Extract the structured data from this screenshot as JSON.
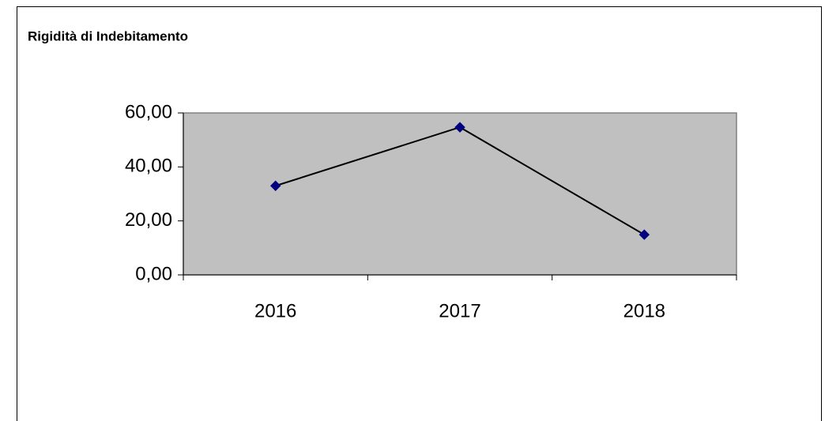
{
  "chart_data": {
    "type": "line",
    "title": "Rigidità di Indebitamento",
    "categories": [
      "2016",
      "2017",
      "2018"
    ],
    "series": [
      {
        "name": "Rigidità di Indebitamento",
        "color": "#000080",
        "values": [
          33,
          54.7,
          14.9
        ]
      }
    ],
    "ylim": [
      0,
      60
    ],
    "yticks": [
      {
        "value": 0,
        "label": "0,00"
      },
      {
        "value": 20,
        "label": "20,00"
      },
      {
        "value": 40,
        "label": "40,00"
      },
      {
        "value": 60,
        "label": "60,00"
      }
    ],
    "plot_background": "#c0c0c0",
    "legend": false
  }
}
